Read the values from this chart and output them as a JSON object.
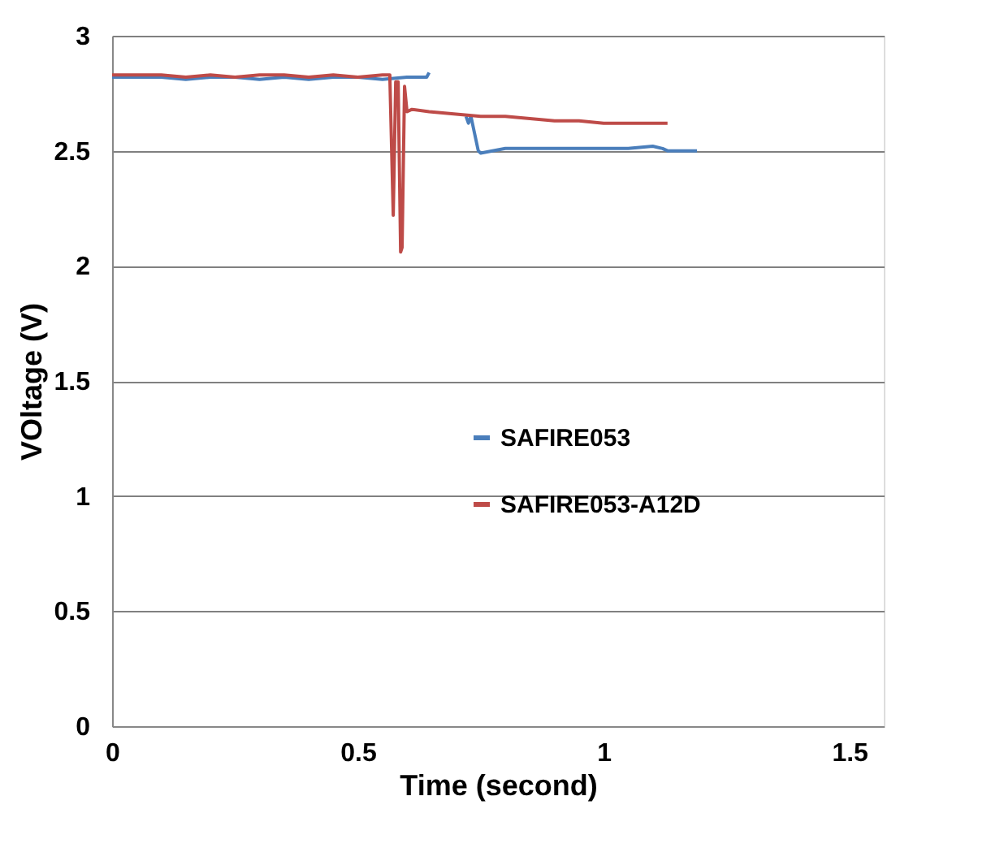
{
  "chart_data": {
    "type": "line",
    "xlabel": "Time (second)",
    "ylabel": "VOltage (V)",
    "xlim": [
      0,
      1.57
    ],
    "xticks": [
      0,
      0.5,
      1,
      1.5
    ],
    "ylim": [
      0,
      3
    ],
    "yticks": [
      0,
      0.5,
      1,
      1.5,
      2,
      2.5,
      3
    ],
    "grid": "y",
    "legend": "right",
    "marker": "none",
    "line_style": "solid",
    "series": [
      {
        "name": "SAFIRE053",
        "color": "#4a7ebb",
        "x": [
          0,
          0.05,
          0.1,
          0.15,
          0.2,
          0.25,
          0.3,
          0.35,
          0.4,
          0.45,
          0.5,
          0.55,
          0.6,
          0.64,
          0.645,
          0.65,
          0.72,
          0.725,
          0.73,
          0.745,
          0.75,
          0.8,
          0.85,
          0.9,
          0.95,
          1.0,
          1.05,
          1.1,
          1.12,
          1.13,
          1.15,
          1.19
        ],
        "values": [
          2.82,
          2.82,
          2.82,
          2.81,
          2.82,
          2.82,
          2.81,
          2.82,
          2.81,
          2.82,
          2.82,
          2.81,
          2.82,
          2.82,
          2.84,
          null,
          2.65,
          2.62,
          2.65,
          2.5,
          2.49,
          2.51,
          2.51,
          2.51,
          2.51,
          2.51,
          2.51,
          2.52,
          2.51,
          2.5,
          2.5,
          2.5
        ]
      },
      {
        "name": "SAFIRE053-A12D",
        "color": "#be4b48",
        "x": [
          0,
          0.05,
          0.1,
          0.15,
          0.2,
          0.25,
          0.3,
          0.35,
          0.4,
          0.45,
          0.5,
          0.55,
          0.565,
          0.572,
          0.577,
          0.582,
          0.587,
          0.59,
          0.595,
          0.6,
          0.61,
          0.645,
          0.75,
          0.8,
          0.85,
          0.9,
          0.95,
          1.0,
          1.05,
          1.1,
          1.13
        ],
        "values": [
          2.83,
          2.83,
          2.83,
          2.82,
          2.83,
          2.82,
          2.83,
          2.83,
          2.82,
          2.83,
          2.82,
          2.83,
          2.83,
          2.22,
          2.8,
          2.8,
          2.06,
          2.08,
          2.78,
          2.67,
          2.68,
          2.67,
          2.65,
          2.65,
          2.64,
          2.63,
          2.63,
          2.62,
          2.62,
          2.62,
          2.62
        ]
      }
    ]
  }
}
